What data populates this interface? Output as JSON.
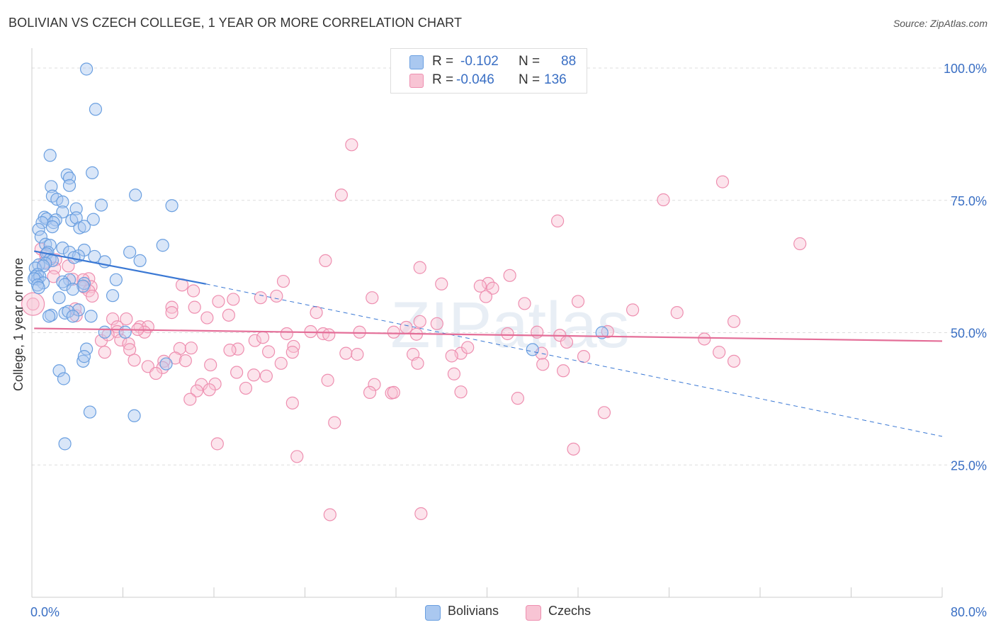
{
  "title": "BOLIVIAN VS CZECH COLLEGE, 1 YEAR OR MORE CORRELATION CHART",
  "source": "Source: ZipAtlas.com",
  "watermark": "ZIPatlas",
  "legend": {
    "r_label": "R =",
    "n_label": "N =",
    "rows": [
      {
        "r": "-0.102",
        "n": "88",
        "color": "#aac8f0",
        "border": "#6a9fe0"
      },
      {
        "r": "-0.046",
        "n": "136",
        "color": "#f8c4d4",
        "border": "#ee8fb0"
      }
    ]
  },
  "bottom_legend": [
    {
      "label": "Bolivians",
      "color": "#aac8f0",
      "border": "#6a9fe0"
    },
    {
      "label": "Czechs",
      "color": "#f8c4d4",
      "border": "#ee8fb0"
    }
  ],
  "chart_data": {
    "type": "scatter",
    "title": "BOLIVIAN VS CZECH COLLEGE, 1 YEAR OR MORE CORRELATION CHART",
    "xlabel": "",
    "ylabel": "College, 1 year or more",
    "xlim": [
      0,
      80
    ],
    "ylim": [
      0,
      100
    ],
    "x_ticks_labels": [
      "0.0%",
      "80.0%"
    ],
    "y_ticks": [
      25,
      50,
      75,
      100
    ],
    "y_ticks_labels": [
      "25.0%",
      "50.0%",
      "75.0%",
      "100.0%"
    ],
    "grid": true,
    "legend_position": "top-center",
    "series": [
      {
        "name": "Bolivians",
        "color": "#6a9fe0",
        "fill": "#aac8f0",
        "r": -0.102,
        "n": 88,
        "trend": {
          "x0": 0.2,
          "y0": 65.4,
          "x1": 15.3,
          "y1": 59.2,
          "dash_to_x": 80,
          "dash_to_y": 30.4
        },
        "points": [
          [
            4.8,
            99.8
          ],
          [
            5.6,
            92.2
          ],
          [
            1.6,
            83.5
          ],
          [
            5.3,
            80.2
          ],
          [
            3.1,
            79.8
          ],
          [
            3.3,
            79.2
          ],
          [
            1.7,
            77.6
          ],
          [
            3.3,
            77.8
          ],
          [
            1.8,
            75.8
          ],
          [
            2.2,
            75.2
          ],
          [
            2.7,
            74.7
          ],
          [
            9.1,
            76.0
          ],
          [
            6.1,
            74.1
          ],
          [
            12.3,
            74.0
          ],
          [
            3.9,
            73.4
          ],
          [
            2.7,
            72.8
          ],
          [
            1.1,
            71.8
          ],
          [
            1.3,
            71.5
          ],
          [
            2.1,
            71.3
          ],
          [
            3.5,
            71.2
          ],
          [
            1.9,
            70.8
          ],
          [
            0.9,
            70.8
          ],
          [
            5.4,
            71.4
          ],
          [
            3.9,
            71.7
          ],
          [
            4.2,
            69.8
          ],
          [
            4.6,
            70.1
          ],
          [
            1.8,
            70.0
          ],
          [
            0.6,
            69.5
          ],
          [
            0.8,
            68.1
          ],
          [
            1.2,
            66.7
          ],
          [
            11.5,
            66.5
          ],
          [
            1.6,
            66.5
          ],
          [
            2.7,
            66.0
          ],
          [
            3.3,
            65.2
          ],
          [
            4.6,
            65.6
          ],
          [
            1.4,
            65.2
          ],
          [
            1.3,
            64.9
          ],
          [
            8.6,
            65.2
          ],
          [
            4.1,
            64.5
          ],
          [
            3.7,
            64.2
          ],
          [
            5.5,
            64.4
          ],
          [
            1.6,
            63.9
          ],
          [
            1.8,
            63.6
          ],
          [
            6.4,
            63.4
          ],
          [
            9.5,
            63.6
          ],
          [
            1.2,
            63.1
          ],
          [
            0.6,
            62.8
          ],
          [
            0.3,
            62.2
          ],
          [
            1.0,
            62.6
          ],
          [
            0.5,
            61.0
          ],
          [
            0.3,
            60.6
          ],
          [
            0.5,
            60.1
          ],
          [
            0.7,
            60.6
          ],
          [
            0.2,
            60.2
          ],
          [
            3.3,
            60.0
          ],
          [
            7.4,
            60.0
          ],
          [
            2.7,
            59.6
          ],
          [
            1.0,
            59.4
          ],
          [
            0.5,
            59.0
          ],
          [
            4.6,
            59.3
          ],
          [
            4.5,
            58.8
          ],
          [
            0.6,
            58.5
          ],
          [
            2.9,
            59.1
          ],
          [
            3.6,
            58.2
          ],
          [
            7.1,
            57.0
          ],
          [
            2.4,
            56.6
          ],
          [
            4.1,
            54.3
          ],
          [
            1.7,
            53.3
          ],
          [
            2.9,
            53.7
          ],
          [
            3.2,
            54.0
          ],
          [
            1.5,
            53.1
          ],
          [
            3.6,
            53.1
          ],
          [
            5.2,
            53.1
          ],
          [
            6.4,
            50.1
          ],
          [
            8.2,
            50.1
          ],
          [
            4.8,
            46.9
          ],
          [
            44.0,
            46.8
          ],
          [
            4.5,
            44.6
          ],
          [
            11.8,
            44.1
          ],
          [
            2.4,
            42.8
          ],
          [
            2.8,
            41.3
          ],
          [
            5.1,
            35.0
          ],
          [
            9.0,
            34.3
          ],
          [
            2.9,
            29.0
          ],
          [
            50.1,
            50.0
          ],
          [
            4.6,
            45.5
          ]
        ]
      },
      {
        "name": "Czechs",
        "color": "#ee8fb0",
        "fill": "#f8c4d4",
        "r": -0.046,
        "n": 136,
        "trend": {
          "x0": 0.2,
          "y0": 50.8,
          "x1": 80,
          "y1": 48.4
        },
        "points": [
          [
            28.1,
            85.5
          ],
          [
            60.7,
            78.5
          ],
          [
            27.2,
            76.0
          ],
          [
            55.5,
            75.1
          ],
          [
            46.2,
            71.1
          ],
          [
            67.5,
            66.8
          ],
          [
            0.8,
            65.8
          ],
          [
            1.2,
            64.7
          ],
          [
            2.1,
            63.8
          ],
          [
            25.8,
            63.6
          ],
          [
            1.1,
            63.3
          ],
          [
            3.2,
            62.6
          ],
          [
            2.0,
            62.2
          ],
          [
            34.1,
            62.3
          ],
          [
            42.0,
            60.8
          ],
          [
            3.6,
            60.1
          ],
          [
            5.0,
            60.2
          ],
          [
            4.5,
            60.0
          ],
          [
            22.1,
            59.7
          ],
          [
            1.9,
            60.6
          ],
          [
            13.2,
            59.0
          ],
          [
            36.0,
            59.2
          ],
          [
            40.1,
            59.3
          ],
          [
            39.4,
            58.8
          ],
          [
            5.2,
            58.7
          ],
          [
            4.6,
            58.6
          ],
          [
            5.0,
            57.9
          ],
          [
            40.5,
            58.4
          ],
          [
            5.3,
            56.9
          ],
          [
            14.2,
            57.9
          ],
          [
            39.9,
            56.8
          ],
          [
            17.7,
            56.3
          ],
          [
            20.1,
            56.6
          ],
          [
            21.5,
            56.9
          ],
          [
            29.9,
            56.6
          ],
          [
            43.3,
            55.5
          ],
          [
            48.0,
            55.9
          ],
          [
            12.3,
            54.8
          ],
          [
            14.3,
            54.8
          ],
          [
            12.3,
            53.8
          ],
          [
            25.0,
            53.8
          ],
          [
            52.8,
            54.3
          ],
          [
            56.7,
            53.8
          ],
          [
            15.4,
            52.8
          ],
          [
            17.3,
            53.3
          ],
          [
            8.3,
            52.6
          ],
          [
            3.9,
            53.2
          ],
          [
            7.1,
            52.6
          ],
          [
            61.7,
            52.1
          ],
          [
            34.1,
            52.1
          ],
          [
            7.5,
            51.1
          ],
          [
            9.5,
            51.1
          ],
          [
            10.2,
            51.1
          ],
          [
            32.9,
            51.0
          ],
          [
            7.5,
            50.2
          ],
          [
            9.9,
            50.1
          ],
          [
            22.4,
            49.8
          ],
          [
            24.5,
            50.2
          ],
          [
            25.6,
            49.8
          ],
          [
            26.1,
            49.6
          ],
          [
            28.8,
            50.1
          ],
          [
            31.8,
            50.1
          ],
          [
            33.8,
            49.7
          ],
          [
            41.8,
            49.8
          ],
          [
            46.4,
            49.5
          ],
          [
            47.0,
            48.2
          ],
          [
            19.6,
            48.5
          ],
          [
            20.3,
            49.1
          ],
          [
            7.8,
            48.6
          ],
          [
            6.1,
            48.5
          ],
          [
            8.5,
            47.9
          ],
          [
            23.0,
            47.4
          ],
          [
            18.1,
            46.9
          ],
          [
            17.4,
            46.7
          ],
          [
            13.0,
            47.0
          ],
          [
            14.0,
            47.1
          ],
          [
            8.6,
            46.8
          ],
          [
            6.4,
            46.3
          ],
          [
            20.8,
            46.4
          ],
          [
            22.9,
            46.3
          ],
          [
            27.6,
            46.1
          ],
          [
            28.6,
            45.9
          ],
          [
            33.5,
            45.9
          ],
          [
            37.7,
            46.1
          ],
          [
            44.8,
            46.1
          ],
          [
            48.5,
            45.5
          ],
          [
            61.7,
            44.6
          ],
          [
            9.0,
            44.8
          ],
          [
            12.6,
            45.2
          ],
          [
            11.6,
            44.6
          ],
          [
            13.5,
            44.7
          ],
          [
            10.2,
            43.6
          ],
          [
            11.5,
            43.4
          ],
          [
            15.7,
            43.9
          ],
          [
            21.9,
            44.2
          ],
          [
            33.9,
            44.2
          ],
          [
            44.9,
            44.0
          ],
          [
            46.7,
            42.8
          ],
          [
            10.9,
            42.3
          ],
          [
            18.0,
            42.5
          ],
          [
            19.5,
            42.0
          ],
          [
            20.6,
            41.8
          ],
          [
            37.1,
            42.2
          ],
          [
            26.0,
            41.0
          ],
          [
            14.9,
            40.2
          ],
          [
            16.1,
            40.3
          ],
          [
            30.1,
            40.2
          ],
          [
            18.8,
            39.5
          ],
          [
            15.6,
            39.2
          ],
          [
            14.5,
            39.0
          ],
          [
            29.7,
            38.7
          ],
          [
            31.6,
            38.6
          ],
          [
            31.8,
            38.7
          ],
          [
            37.7,
            38.8
          ],
          [
            13.9,
            37.4
          ],
          [
            42.7,
            37.6
          ],
          [
            22.9,
            36.7
          ],
          [
            50.3,
            34.9
          ],
          [
            26.6,
            33.0
          ],
          [
            16.3,
            29.0
          ],
          [
            47.6,
            28.0
          ],
          [
            23.3,
            26.6
          ],
          [
            26.2,
            15.6
          ],
          [
            34.2,
            15.8
          ],
          [
            0.1,
            55.4
          ],
          [
            3.8,
            54.5
          ],
          [
            6.7,
            49.6
          ],
          [
            9.3,
            50.6
          ],
          [
            16.4,
            55.9
          ],
          [
            35.6,
            51.7
          ],
          [
            38.3,
            47.2
          ],
          [
            44.4,
            50.1
          ],
          [
            50.6,
            50.2
          ],
          [
            59.1,
            48.8
          ],
          [
            60.4,
            46.3
          ],
          [
            36.9,
            45.6
          ]
        ]
      }
    ]
  }
}
